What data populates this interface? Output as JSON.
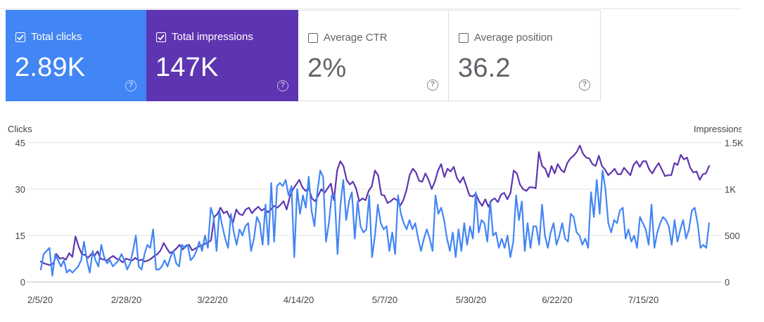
{
  "metrics": {
    "clicks": {
      "label": "Total clicks",
      "value": "2.89K",
      "checked": true,
      "help": "?"
    },
    "impressions": {
      "label": "Total impressions",
      "value": "147K",
      "checked": true,
      "help": "?"
    },
    "ctr": {
      "label": "Average CTR",
      "value": "2%",
      "checked": false,
      "help": "?"
    },
    "position": {
      "label": "Average position",
      "value": "36.2",
      "checked": false,
      "help": "?"
    }
  },
  "colors": {
    "clicks": "#4285f4",
    "impressions": "#5e35b1",
    "grid": "#e0e0e0"
  },
  "chart_data": {
    "type": "line",
    "y_left_label": "Clicks",
    "y_right_label": "Impressions",
    "y_left_ticks": [
      "0",
      "15",
      "30",
      "45"
    ],
    "y_right_ticks": [
      "0",
      "500",
      "1K",
      "1.5K"
    ],
    "ylim_left": [
      0,
      45
    ],
    "ylim_right": [
      0,
      1500
    ],
    "x_ticks": [
      "2/5/20",
      "2/28/20",
      "3/22/20",
      "4/14/20",
      "5/7/20",
      "5/30/20",
      "6/22/20",
      "7/15/20"
    ],
    "series": [
      {
        "name": "Clicks",
        "axis": "left",
        "values": [
          4,
          9,
          10,
          11,
          2,
          9,
          7,
          5,
          7,
          3,
          4,
          3,
          4,
          5,
          7,
          13,
          7,
          3,
          10,
          7,
          5,
          12,
          8,
          6,
          7,
          5,
          6,
          7,
          9,
          7,
          4,
          6,
          10,
          15,
          5,
          4,
          9,
          12,
          11,
          17,
          4,
          4,
          5,
          7,
          5,
          8,
          10,
          6,
          5,
          12,
          11,
          12,
          7,
          8,
          10,
          13,
          10,
          15,
          11,
          24,
          21,
          10,
          23,
          18,
          14,
          11,
          22,
          16,
          12,
          17,
          15,
          18,
          19,
          10,
          14,
          21,
          19,
          12,
          25,
          12,
          32,
          13,
          31,
          32,
          31,
          33,
          28,
          31,
          8,
          30,
          22,
          28,
          24,
          34,
          23,
          18,
          29,
          36,
          34,
          13,
          19,
          28,
          28,
          9,
          25,
          33,
          20,
          26,
          29,
          14,
          26,
          18,
          16,
          17,
          28,
          8,
          15,
          25,
          19,
          17,
          18,
          10,
          16,
          9,
          28,
          22,
          19,
          17,
          20,
          17,
          19,
          14,
          10,
          14,
          17,
          14,
          10,
          28,
          22,
          24,
          20,
          14,
          10,
          16,
          8,
          17,
          10,
          19,
          12,
          18,
          14,
          29,
          16,
          20,
          19,
          13,
          26,
          15,
          16,
          11,
          14,
          11,
          15,
          8,
          13,
          28,
          20,
          26,
          10,
          19,
          11,
          18,
          18,
          12,
          25,
          15,
          11,
          16,
          19,
          12,
          15,
          19,
          14,
          13,
          22,
          21,
          16,
          15,
          12,
          14,
          11,
          29,
          21,
          33,
          22,
          36,
          30,
          19,
          16,
          20,
          19,
          23,
          24,
          14,
          17,
          13,
          15,
          11,
          21,
          19,
          17,
          12,
          25,
          11,
          16,
          19,
          21,
          20,
          18,
          12,
          20,
          13,
          17,
          20,
          14,
          17,
          23,
          24,
          19,
          11,
          12,
          11,
          19
        ]
      },
      {
        "name": "Impressions",
        "axis": "right",
        "values": [
          220,
          200,
          190,
          180,
          200,
          300,
          250,
          260,
          240,
          310,
          270,
          490,
          380,
          300,
          290,
          260,
          300,
          280,
          330,
          250,
          240,
          230,
          260,
          280,
          250,
          240,
          210,
          250,
          240,
          230,
          260,
          230,
          240,
          220,
          230,
          250,
          280,
          300,
          340,
          420,
          360,
          310,
          330,
          360,
          400,
          350,
          390,
          400,
          340,
          360,
          380,
          390,
          410,
          420,
          450,
          700,
          730,
          800,
          740,
          760,
          690,
          640,
          780,
          730,
          720,
          780,
          800,
          740,
          780,
          810,
          770,
          790,
          750,
          780,
          820,
          800,
          830,
          870,
          780,
          920,
          1000,
          1050,
          1100,
          1020,
          980,
          1010,
          900,
          870,
          930,
          1000,
          960,
          1010,
          1060,
          880,
          1200,
          1300,
          1250,
          1100,
          1050,
          1080,
          1010,
          870,
          900,
          880,
          980,
          1030,
          1200,
          1150,
          940,
          930,
          850,
          870,
          900,
          880,
          820,
          880,
          990,
          1150,
          1220,
          1180,
          1090,
          1080,
          1170,
          1100,
          1000,
          1080,
          1200,
          1270,
          1130,
          1220,
          1190,
          1240,
          1120,
          1070,
          1130,
          1030,
          930,
          920,
          950,
          870,
          820,
          890,
          810,
          880,
          900,
          860,
          940,
          960,
          890,
          960,
          1200,
          1170,
          1050,
          1000,
          980,
          1020,
          1020,
          1010,
          1400,
          1250,
          1220,
          1130,
          1250,
          1170,
          1270,
          1210,
          1180,
          1280,
          1330,
          1360,
          1400,
          1470,
          1380,
          1340,
          1330,
          1270,
          1250,
          1360,
          1250,
          1210,
          1150,
          1180,
          1220,
          1160,
          1160,
          1230,
          1190,
          1150,
          1260,
          1300,
          1240,
          1300,
          1300,
          1210,
          1170,
          1230,
          1280,
          1210,
          1140,
          1150,
          1150,
          1280,
          1260,
          1370,
          1320,
          1340,
          1230,
          1180,
          1190,
          1100,
          1160,
          1170,
          1250
        ]
      }
    ]
  }
}
